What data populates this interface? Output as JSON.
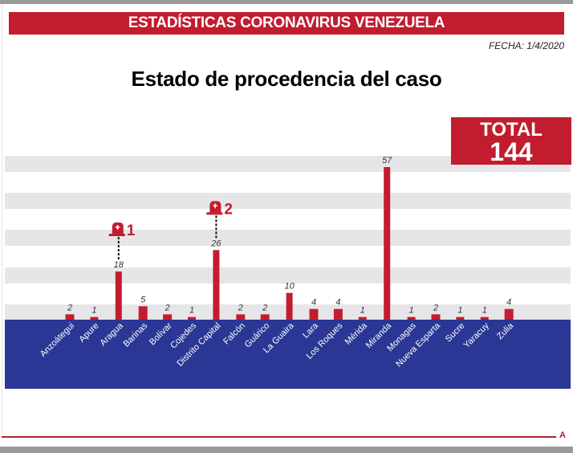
{
  "header": {
    "banner": "ESTADÍSTICAS CORONAVIRUS VENEZUELA",
    "date": "FECHA: 1/4/2020",
    "footer_logo": "A"
  },
  "total": {
    "label": "TOTAL",
    "value": "144"
  },
  "colors": {
    "red": "#c11d2f",
    "blue": "#2a3794",
    "stripe": "#e6e6e8"
  },
  "chart_data": {
    "type": "bar",
    "title": "Estado de procedencia del caso",
    "xlabel": "",
    "ylabel": "",
    "ylim": [
      0,
      57
    ],
    "grid": "horizontal-bands",
    "categories": [
      "Anzoátegui",
      "Apure",
      "Aragua",
      "Barinas",
      "Bolívar",
      "Cojedes",
      "Distrito Capital",
      "Falcón",
      "Guárico",
      "La Guaira",
      "Lara",
      "Los Roques",
      "Mérida",
      "Miranda",
      "Monagas",
      "Nueva Esparta",
      "Sucre",
      "Yaracuy",
      "Zulia"
    ],
    "values": [
      2,
      1,
      18,
      5,
      2,
      1,
      26,
      2,
      2,
      10,
      4,
      4,
      1,
      57,
      1,
      2,
      1,
      1,
      4
    ],
    "annotations": [
      {
        "category": "Aragua",
        "icon": "tombstone-icon",
        "label": "1",
        "meaning": "deaths"
      },
      {
        "category": "Distrito Capital",
        "icon": "tombstone-icon",
        "label": "2",
        "meaning": "deaths"
      }
    ]
  }
}
